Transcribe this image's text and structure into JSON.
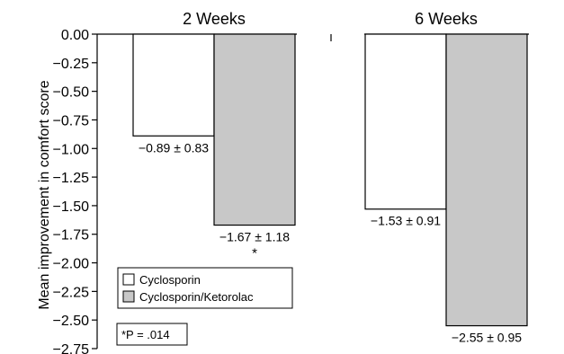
{
  "chart_data": {
    "type": "bar",
    "categories": [
      "2 Weeks",
      "6 Weeks"
    ],
    "series": [
      {
        "name": "Cyclosporin",
        "color": "#ffffff",
        "values": [
          -0.89,
          -1.53
        ],
        "labels": [
          "−0.89 ± 0.83",
          "−1.53 ± 0.91"
        ]
      },
      {
        "name": "Cyclosporin/Ketorolac",
        "color": "#c8c8c8",
        "values": [
          -1.67,
          -2.55
        ],
        "labels": [
          "−1.67 ± 1.18",
          "−2.55 ± 0.95"
        ]
      }
    ],
    "significance": [
      "*",
      ""
    ],
    "ylabel": "Mean improvement in comfort score",
    "ylim": [
      -2.75,
      0
    ],
    "yticks": [
      "0.00",
      "−0.25",
      "−0.50",
      "−0.75",
      "−1.00",
      "−1.25",
      "−1.50",
      "−1.75",
      "−2.00",
      "−2.25",
      "−2.50",
      "−2.75"
    ],
    "ytick_values": [
      0,
      -0.25,
      -0.5,
      -0.75,
      -1,
      -1.25,
      -1.5,
      -1.75,
      -2,
      -2.25,
      -2.5,
      -2.75
    ],
    "footnote": "*P = .014",
    "legend_position": "bottom-left",
    "grid": false
  }
}
